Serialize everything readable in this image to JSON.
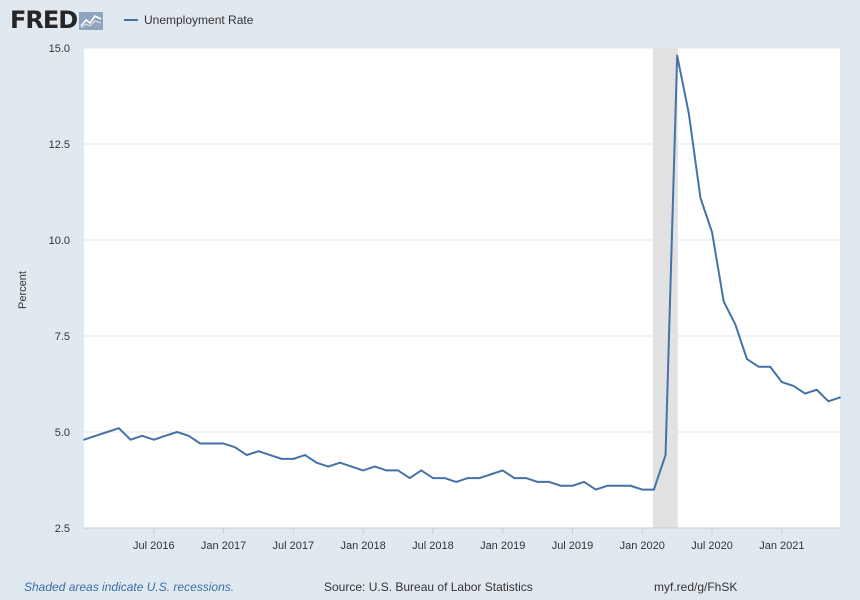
{
  "header": {
    "logo_text": "FRED",
    "legend_label": "Unemployment Rate"
  },
  "footer": {
    "recession_note": "Shaded areas indicate U.S. recessions.",
    "source": "Source: U.S. Bureau of Labor Statistics",
    "short_url": "myf.red/g/FhSK"
  },
  "colors": {
    "series": "#4572a7",
    "recession_shade": "#e1e1e1",
    "gridline": "#e6e6e6",
    "background": "#e1e9f0",
    "plot_background": "#ffffff"
  },
  "chart_data": {
    "type": "line",
    "title": "",
    "xlabel": "",
    "ylabel": "Percent",
    "ylim": [
      2.5,
      15.0
    ],
    "yticks": [
      "15.0",
      "12.5",
      "10.0",
      "7.5",
      "5.0",
      "2.5"
    ],
    "xtick_labels": [
      "Jul 2016",
      "Jan 2017",
      "Jul 2017",
      "Jan 2018",
      "Jul 2018",
      "Jan 2019",
      "Jul 2019",
      "Jan 2020",
      "Jul 2020",
      "Jan 2021"
    ],
    "xtick_dates": [
      "2016-07",
      "2017-01",
      "2017-07",
      "2018-01",
      "2018-07",
      "2019-01",
      "2019-07",
      "2020-01",
      "2020-07",
      "2021-01"
    ],
    "x_range": [
      "2016-01",
      "2021-06"
    ],
    "grid": true,
    "legend_position": "top-left",
    "recessions": [
      {
        "start": "2020-02",
        "end": "2020-04"
      }
    ],
    "series": [
      {
        "name": "Unemployment Rate",
        "x": [
          "2016-01",
          "2016-02",
          "2016-03",
          "2016-04",
          "2016-05",
          "2016-06",
          "2016-07",
          "2016-08",
          "2016-09",
          "2016-10",
          "2016-11",
          "2016-12",
          "2017-01",
          "2017-02",
          "2017-03",
          "2017-04",
          "2017-05",
          "2017-06",
          "2017-07",
          "2017-08",
          "2017-09",
          "2017-10",
          "2017-11",
          "2017-12",
          "2018-01",
          "2018-02",
          "2018-03",
          "2018-04",
          "2018-05",
          "2018-06",
          "2018-07",
          "2018-08",
          "2018-09",
          "2018-10",
          "2018-11",
          "2018-12",
          "2019-01",
          "2019-02",
          "2019-03",
          "2019-04",
          "2019-05",
          "2019-06",
          "2019-07",
          "2019-08",
          "2019-09",
          "2019-10",
          "2019-11",
          "2019-12",
          "2020-01",
          "2020-02",
          "2020-03",
          "2020-04",
          "2020-05",
          "2020-06",
          "2020-07",
          "2020-08",
          "2020-09",
          "2020-10",
          "2020-11",
          "2020-12",
          "2021-01",
          "2021-02",
          "2021-03",
          "2021-04",
          "2021-05",
          "2021-06"
        ],
        "values": [
          4.8,
          4.9,
          5.0,
          5.1,
          4.8,
          4.9,
          4.8,
          4.9,
          5.0,
          4.9,
          4.7,
          4.7,
          4.7,
          4.6,
          4.4,
          4.5,
          4.4,
          4.3,
          4.3,
          4.4,
          4.2,
          4.1,
          4.2,
          4.1,
          4.0,
          4.1,
          4.0,
          4.0,
          3.8,
          4.0,
          3.8,
          3.8,
          3.7,
          3.8,
          3.8,
          3.9,
          4.0,
          3.8,
          3.8,
          3.7,
          3.7,
          3.6,
          3.6,
          3.7,
          3.5,
          3.6,
          3.6,
          3.6,
          3.5,
          3.5,
          4.4,
          14.8,
          13.3,
          11.1,
          10.2,
          8.4,
          7.8,
          6.9,
          6.7,
          6.7,
          6.3,
          6.2,
          6.0,
          6.1,
          5.8,
          5.9
        ]
      }
    ]
  }
}
